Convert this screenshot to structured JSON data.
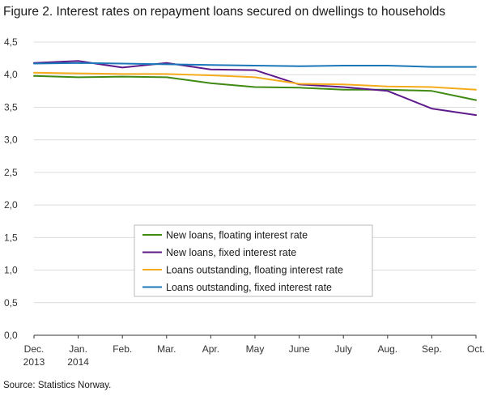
{
  "title": "Figure 2. Interest rates on repayment loans secured on dwellings to households",
  "source": "Source: Statistics Norway.",
  "chart_data": {
    "type": "line",
    "title": "Figure 2. Interest rates on repayment loans secured on dwellings to households",
    "xlabel": "",
    "ylabel": "",
    "categories": [
      [
        "Dec.",
        "2013"
      ],
      [
        "Jan.",
        "2014"
      ],
      [
        "Feb."
      ],
      [
        "Mar."
      ],
      [
        "Apr."
      ],
      [
        "May"
      ],
      [
        "June"
      ],
      [
        "July"
      ],
      [
        "Aug."
      ],
      [
        "Sep."
      ],
      [
        "Oct."
      ]
    ],
    "y_ticks": [
      "0,0",
      "0,5",
      "1,0",
      "1,5",
      "2,0",
      "2,5",
      "3,0",
      "3,5",
      "4,0",
      "4,5"
    ],
    "ylim": [
      0,
      4.5
    ],
    "grid": true,
    "legend_position": "bottom-center",
    "series": [
      {
        "name": "New loans, floating interest rate",
        "color": "#3f8a12",
        "values": [
          3.98,
          3.96,
          3.97,
          3.96,
          3.87,
          3.81,
          3.8,
          3.77,
          3.77,
          3.75,
          3.61
        ]
      },
      {
        "name": "New loans, fixed interest rate",
        "color": "#5e1a8a",
        "values": [
          4.18,
          4.21,
          4.11,
          4.18,
          4.08,
          4.07,
          3.85,
          3.81,
          3.75,
          3.48,
          3.38
        ]
      },
      {
        "name": "Loans outstanding, floating interest rate",
        "color": "#f5ac1c",
        "values": [
          4.03,
          4.02,
          4.01,
          4.01,
          3.99,
          3.96,
          3.86,
          3.85,
          3.82,
          3.81,
          3.77
        ]
      },
      {
        "name": "Loans outstanding, fixed interest rate",
        "color": "#1b77b8",
        "values": [
          4.17,
          4.18,
          4.17,
          4.16,
          4.15,
          4.14,
          4.13,
          4.14,
          4.14,
          4.12,
          4.12
        ]
      }
    ]
  }
}
